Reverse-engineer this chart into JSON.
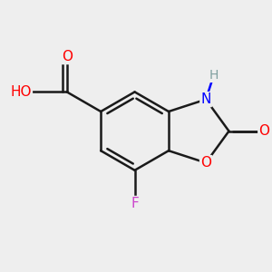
{
  "background_color": "#eeeeee",
  "bond_color": "#1a1a1a",
  "atom_colors": {
    "O": "#ff0000",
    "N": "#0000ff",
    "F": "#cc44cc",
    "H_gray": "#7f9f9f",
    "C": "#1a1a1a"
  },
  "figsize": [
    3.0,
    3.0
  ],
  "dpi": 100
}
